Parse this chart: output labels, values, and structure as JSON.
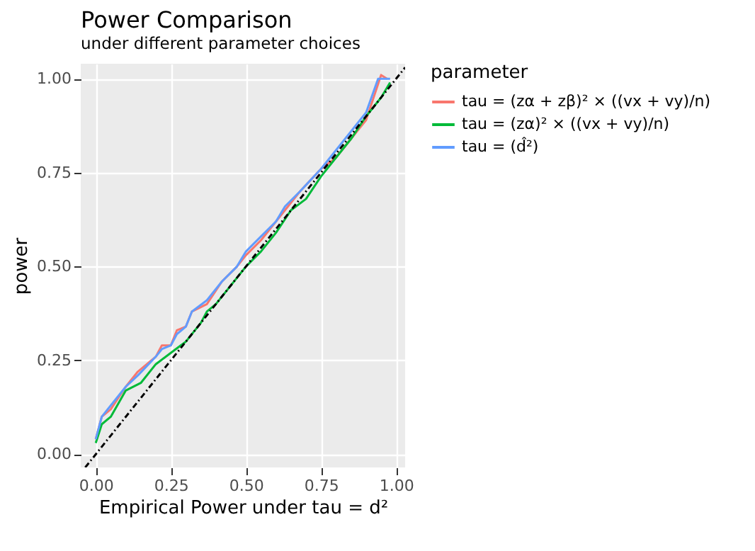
{
  "chart_data": {
    "type": "line",
    "title": "Power Comparison",
    "subtitle": "under different parameter choices",
    "xlabel": "Empirical Power under tau = d²",
    "ylabel": "power",
    "legend_title": "parameter",
    "xlim": [
      -0.05,
      1.03
    ],
    "ylim": [
      -0.035,
      1.04
    ],
    "xticks": [
      {
        "value": 0,
        "label": "0.00"
      },
      {
        "value": 0.25,
        "label": "0.25"
      },
      {
        "value": 0.5,
        "label": "0.50"
      },
      {
        "value": 0.75,
        "label": "0.75"
      },
      {
        "value": 1,
        "label": "1.00"
      }
    ],
    "yticks": [
      {
        "value": 0,
        "label": "0.00"
      },
      {
        "value": 0.25,
        "label": "0.25"
      },
      {
        "value": 0.5,
        "label": "0.50"
      },
      {
        "value": 0.75,
        "label": "0.75"
      },
      {
        "value": 1,
        "label": "1.00"
      }
    ],
    "grid": true,
    "legend": "right",
    "series": [
      {
        "name": "tau = (zα + zβ)² × ((vx + vy)/n)",
        "color": "#f8766d",
        "x": [
          0,
          0.02,
          0.05,
          0.1,
          0.14,
          0.2,
          0.22,
          0.25,
          0.27,
          0.3,
          0.32,
          0.37,
          0.42,
          0.47,
          0.5,
          0.55,
          0.6,
          0.63,
          0.68,
          0.75,
          0.8,
          0.85,
          0.9,
          0.95,
          0.97
        ],
        "values": [
          0.04,
          0.1,
          0.12,
          0.18,
          0.22,
          0.26,
          0.29,
          0.29,
          0.33,
          0.34,
          0.38,
          0.4,
          0.46,
          0.5,
          0.53,
          0.57,
          0.62,
          0.65,
          0.7,
          0.76,
          0.79,
          0.84,
          0.89,
          1.01,
          1.0
        ]
      },
      {
        "name": "tau = (zα)² × ((vx + vy)/n)",
        "color": "#00ba38",
        "x": [
          0,
          0.02,
          0.05,
          0.1,
          0.15,
          0.2,
          0.25,
          0.3,
          0.35,
          0.37,
          0.4,
          0.45,
          0.5,
          0.55,
          0.6,
          0.65,
          0.7,
          0.75,
          0.8,
          0.85,
          0.9,
          0.95,
          0.98
        ],
        "values": [
          0.03,
          0.08,
          0.1,
          0.17,
          0.19,
          0.24,
          0.27,
          0.3,
          0.35,
          0.38,
          0.4,
          0.45,
          0.5,
          0.54,
          0.59,
          0.65,
          0.68,
          0.74,
          0.79,
          0.84,
          0.9,
          0.95,
          0.99
        ]
      },
      {
        "name": "tau = (d̂²)",
        "color": "#619cff",
        "x": [
          0,
          0.02,
          0.05,
          0.1,
          0.14,
          0.2,
          0.22,
          0.25,
          0.27,
          0.3,
          0.32,
          0.37,
          0.42,
          0.47,
          0.5,
          0.55,
          0.6,
          0.63,
          0.68,
          0.75,
          0.8,
          0.85,
          0.9,
          0.94,
          0.98
        ],
        "values": [
          0.04,
          0.1,
          0.13,
          0.18,
          0.21,
          0.26,
          0.28,
          0.29,
          0.32,
          0.34,
          0.38,
          0.41,
          0.46,
          0.5,
          0.54,
          0.58,
          0.62,
          0.66,
          0.7,
          0.76,
          0.81,
          0.86,
          0.91,
          1.0,
          1.0
        ]
      },
      {
        "color": "#000000",
        "line_style": "dashed",
        "x": [
          -0.035,
          1.03
        ],
        "values": [
          -0.035,
          1.03
        ]
      }
    ]
  }
}
